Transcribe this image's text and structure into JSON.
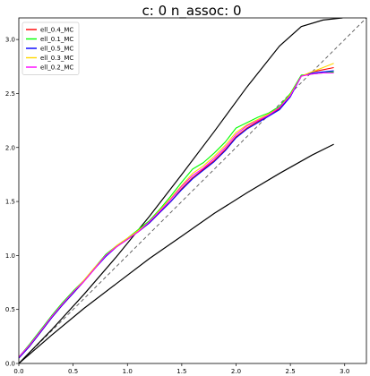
{
  "chart_data": {
    "type": "line",
    "title": "c: 0     n_assoc: 0",
    "xlabel": "",
    "ylabel": "",
    "xlim": [
      0,
      3.2
    ],
    "ylim": [
      0,
      3.2
    ],
    "xticks": [
      "0.0",
      "0.5",
      "1.0",
      "1.5",
      "2.0",
      "2.5",
      "3.0"
    ],
    "yticks": [
      "0.0",
      "0.5",
      "1.0",
      "1.5",
      "2.0",
      "2.5",
      "3.0"
    ],
    "grid": false,
    "legend_position": "top-left",
    "reference_lines": [
      {
        "kind": "identity",
        "style": "dashed",
        "color": "#555555",
        "x": [
          0,
          3.2
        ],
        "y": [
          0,
          3.2
        ]
      },
      {
        "kind": "upper-bound",
        "style": "solid",
        "color": "#000000",
        "x": [
          0,
          0.3,
          0.6,
          0.9,
          1.2,
          1.5,
          1.8,
          2.1,
          2.4,
          2.6,
          2.8,
          2.98
        ],
        "y": [
          0,
          0.31,
          0.64,
          0.99,
          1.36,
          1.75,
          2.15,
          2.56,
          2.94,
          3.12,
          3.18,
          3.2
        ]
      },
      {
        "kind": "lower-bound",
        "style": "solid",
        "color": "#000000",
        "x": [
          0,
          0.3,
          0.6,
          0.9,
          1.2,
          1.5,
          1.8,
          2.1,
          2.4,
          2.7,
          2.9
        ],
        "y": [
          0,
          0.26,
          0.51,
          0.74,
          0.97,
          1.18,
          1.39,
          1.58,
          1.76,
          1.93,
          2.03
        ]
      }
    ],
    "series": [
      {
        "name": "ell_0.4_MC",
        "color": "#ff0000",
        "x": [
          0,
          0.1,
          0.2,
          0.3,
          0.4,
          0.5,
          0.6,
          0.7,
          0.8,
          0.9,
          1.0,
          1.1,
          1.2,
          1.3,
          1.4,
          1.5,
          1.6,
          1.7,
          1.8,
          1.9,
          2.0,
          2.1,
          2.2,
          2.3,
          2.4,
          2.5,
          2.6,
          2.7,
          2.8,
          2.9
        ],
        "y": [
          0.05,
          0.16,
          0.29,
          0.42,
          0.54,
          0.65,
          0.76,
          0.88,
          1.0,
          1.08,
          1.15,
          1.22,
          1.3,
          1.4,
          1.5,
          1.62,
          1.72,
          1.8,
          1.88,
          1.98,
          2.1,
          2.18,
          2.24,
          2.3,
          2.36,
          2.48,
          2.66,
          2.7,
          2.72,
          2.74
        ]
      },
      {
        "name": "ell_0.1_MC",
        "color": "#00ff00",
        "x": [
          0,
          0.1,
          0.2,
          0.3,
          0.4,
          0.5,
          0.6,
          0.7,
          0.8,
          0.9,
          1.0,
          1.1,
          1.2,
          1.3,
          1.4,
          1.5,
          1.6,
          1.7,
          1.8,
          1.9,
          2.0,
          2.1,
          2.2,
          2.3,
          2.4,
          2.5,
          2.6,
          2.7,
          2.8,
          2.9
        ],
        "y": [
          0.06,
          0.18,
          0.31,
          0.44,
          0.56,
          0.67,
          0.77,
          0.89,
          1.01,
          1.09,
          1.16,
          1.24,
          1.32,
          1.43,
          1.55,
          1.68,
          1.8,
          1.86,
          1.95,
          2.05,
          2.18,
          2.23,
          2.28,
          2.32,
          2.38,
          2.5,
          2.67,
          2.68,
          2.69,
          2.7
        ]
      },
      {
        "name": "ell_0.5_MC",
        "color": "#0000ff",
        "x": [
          0,
          0.1,
          0.2,
          0.3,
          0.4,
          0.5,
          0.6,
          0.7,
          0.8,
          0.9,
          1.0,
          1.1,
          1.2,
          1.3,
          1.4,
          1.5,
          1.6,
          1.7,
          1.8,
          1.9,
          2.0,
          2.1,
          2.2,
          2.3,
          2.4,
          2.5,
          2.6,
          2.7,
          2.8,
          2.9
        ],
        "y": [
          0.05,
          0.16,
          0.29,
          0.42,
          0.54,
          0.65,
          0.76,
          0.88,
          0.99,
          1.08,
          1.15,
          1.22,
          1.3,
          1.4,
          1.5,
          1.61,
          1.71,
          1.79,
          1.87,
          1.97,
          2.09,
          2.17,
          2.23,
          2.29,
          2.35,
          2.47,
          2.66,
          2.69,
          2.7,
          2.71
        ]
      },
      {
        "name": "ell_0.3_MC",
        "color": "#ffd700",
        "x": [
          0,
          0.1,
          0.2,
          0.3,
          0.4,
          0.5,
          0.6,
          0.7,
          0.8,
          0.9,
          1.0,
          1.1,
          1.2,
          1.3,
          1.4,
          1.5,
          1.6,
          1.7,
          1.8,
          1.9,
          2.0,
          2.1,
          2.2,
          2.3,
          2.4,
          2.5,
          2.6,
          2.7,
          2.8,
          2.9
        ],
        "y": [
          0.06,
          0.17,
          0.3,
          0.43,
          0.55,
          0.66,
          0.77,
          0.89,
          1.0,
          1.09,
          1.16,
          1.23,
          1.31,
          1.42,
          1.53,
          1.65,
          1.76,
          1.83,
          1.92,
          2.02,
          2.14,
          2.21,
          2.26,
          2.31,
          2.37,
          2.49,
          2.66,
          2.7,
          2.74,
          2.78
        ]
      },
      {
        "name": "ell_0.2_MC",
        "color": "#ff00ff",
        "x": [
          0,
          0.1,
          0.2,
          0.3,
          0.4,
          0.5,
          0.6,
          0.7,
          0.8,
          0.9,
          1.0,
          1.1,
          1.2,
          1.3,
          1.4,
          1.5,
          1.6,
          1.7,
          1.8,
          1.9,
          2.0,
          2.1,
          2.2,
          2.3,
          2.4,
          2.5,
          2.6,
          2.7,
          2.8,
          2.9
        ],
        "y": [
          0.06,
          0.17,
          0.3,
          0.43,
          0.55,
          0.66,
          0.76,
          0.88,
          1.0,
          1.08,
          1.15,
          1.22,
          1.31,
          1.41,
          1.52,
          1.64,
          1.74,
          1.81,
          1.9,
          2.0,
          2.12,
          2.2,
          2.25,
          2.3,
          2.37,
          2.48,
          2.66,
          2.68,
          2.69,
          2.69
        ]
      }
    ]
  }
}
